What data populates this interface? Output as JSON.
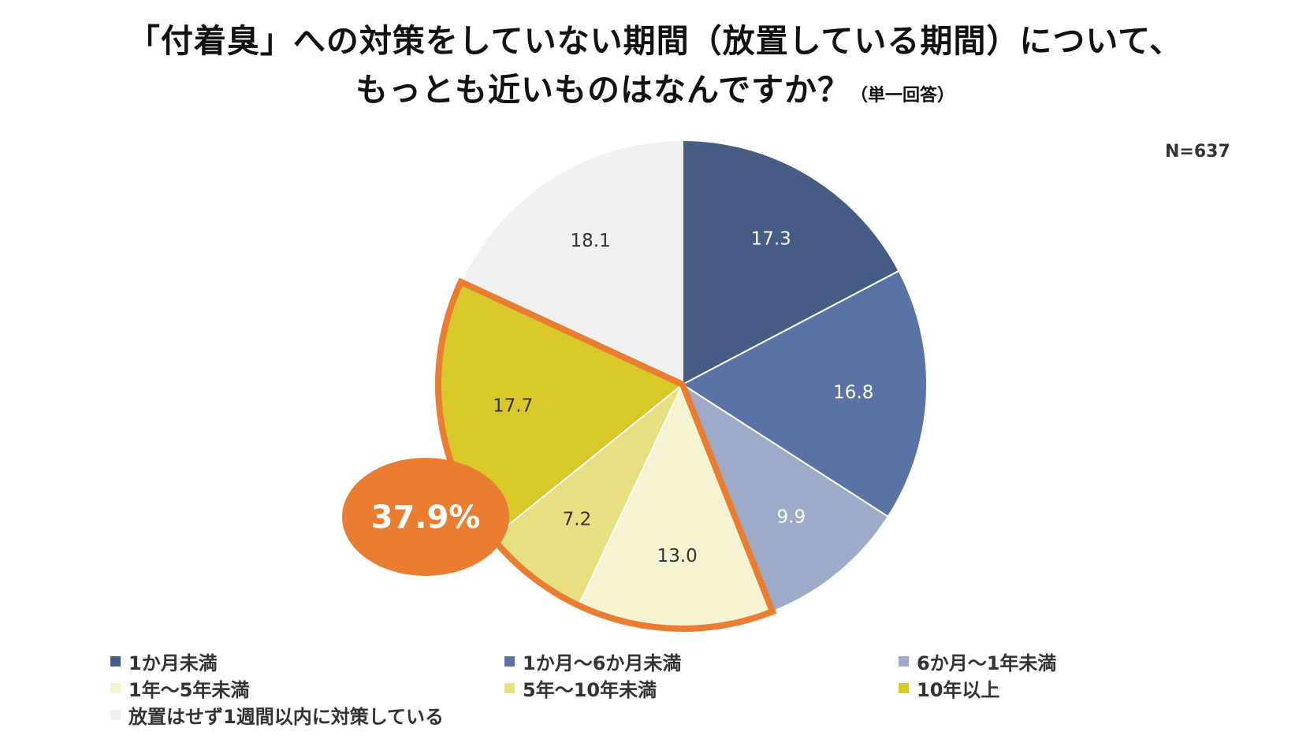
{
  "title": {
    "line1": "「付着臭」への対策をしていない期間（放置している期間）について、",
    "line2": "もっとも近いものはなんですか？",
    "note": "（単一回答）"
  },
  "n_label": "N=637",
  "callout": {
    "text": "37.9%",
    "color": "#e97e33"
  },
  "chart_data": {
    "type": "pie",
    "unit": "%",
    "start_angle_deg": 0,
    "direction": "clockwise",
    "slices": [
      {
        "label": "1か月未満",
        "value": 17.3,
        "display": "17.3",
        "color": "#475c85",
        "label_color": "#ffffff"
      },
      {
        "label": "1か月～6か月未満",
        "value": 16.8,
        "display": "16.8",
        "color": "#5a72a5",
        "label_color": "#ffffff"
      },
      {
        "label": "6か月～1年未満",
        "value": 9.9,
        "display": "9.9",
        "color": "#9dabc8",
        "label_color": "#ffffff"
      },
      {
        "label": "1年～5年未満",
        "value": 13.0,
        "display": "13.0",
        "color": "#f5f3d2",
        "label_color": "#333333"
      },
      {
        "label": "5年～10年未満",
        "value": 7.2,
        "display": "7.2",
        "color": "#e8df82",
        "label_color": "#333333"
      },
      {
        "label": "10年以上",
        "value": 17.7,
        "display": "17.7",
        "color": "#d9c82a",
        "label_color": "#333333"
      },
      {
        "label": "放置はせず1週間以内に対策している",
        "value": 18.1,
        "display": "18.1",
        "color": "#f1f1f1",
        "label_color": "#333333"
      }
    ],
    "highlight": {
      "slices": [
        3,
        4,
        5
      ],
      "outline_color": "#e97e33"
    },
    "legend_position": "bottom"
  }
}
